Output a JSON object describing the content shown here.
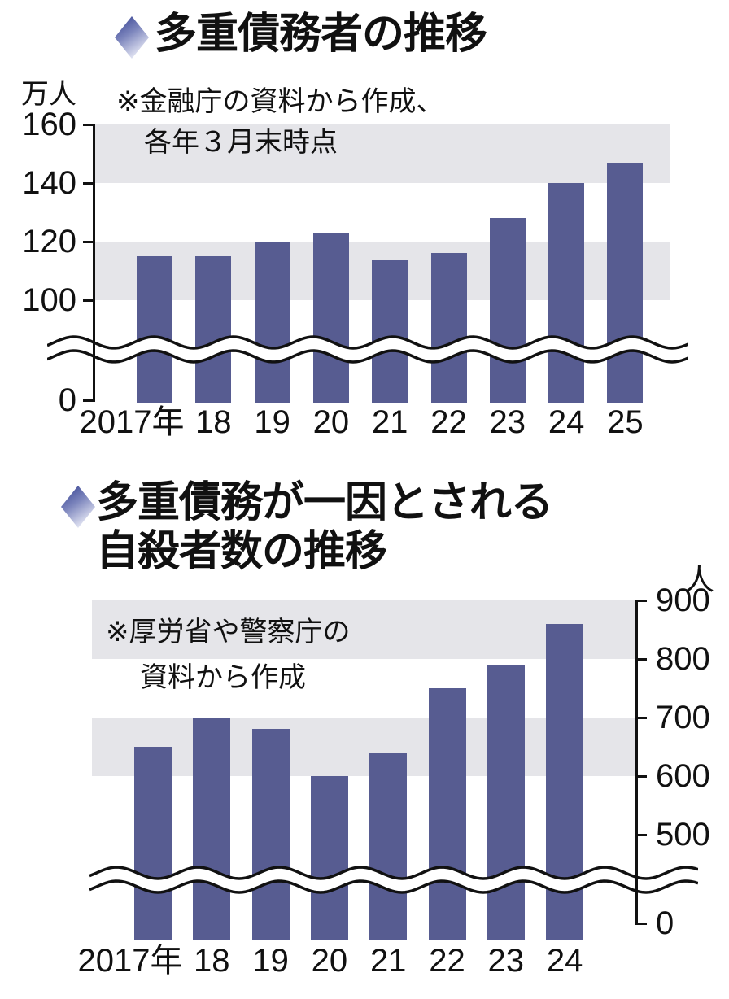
{
  "page": {
    "background": "#ffffff"
  },
  "style": {
    "bar_color": "#575c91",
    "band_color": "#e5e5e9",
    "axis_color": "#111111",
    "diamond_dark": "#2f3b8d",
    "diamond_mid": "#7d86bd",
    "diamond_light": "#e6e8f5"
  },
  "chart_data": [
    {
      "type": "bar",
      "title_lines": [
        "多重債務者の推移"
      ],
      "unit": "万人",
      "note_lines": [
        "※金融庁の資料から作成、",
        "各年３月末時点"
      ],
      "categories": [
        "2017年",
        "18",
        "19",
        "20",
        "21",
        "22",
        "23",
        "24",
        "25"
      ],
      "values": [
        115,
        115,
        120,
        123,
        114,
        116,
        128,
        140,
        147
      ],
      "ylabel": "万人",
      "y_ticks": [
        160,
        140,
        120,
        100,
        0
      ],
      "ylim": [
        0,
        160
      ],
      "y_axis_side": "left",
      "axis_break": true,
      "gray_bands": [
        [
          140,
          160
        ],
        [
          100,
          120
        ]
      ],
      "grid": "banded-rows",
      "legend": "none"
    },
    {
      "type": "bar",
      "title_lines": [
        "多重債務が一因とされる",
        "自殺者数の推移"
      ],
      "unit": "人",
      "note_lines": [
        "※厚労省や警察庁の",
        "資料から作成"
      ],
      "categories": [
        "2017年",
        "18",
        "19",
        "20",
        "21",
        "22",
        "23",
        "24"
      ],
      "values": [
        650,
        700,
        680,
        600,
        640,
        750,
        790,
        860
      ],
      "ylabel": "人",
      "y_ticks": [
        900,
        800,
        700,
        600,
        500,
        0
      ],
      "ylim": [
        0,
        900
      ],
      "y_axis_side": "right",
      "axis_break": true,
      "gray_bands": [
        [
          800,
          900
        ],
        [
          600,
          700
        ]
      ],
      "grid": "banded-rows",
      "legend": "none"
    }
  ]
}
